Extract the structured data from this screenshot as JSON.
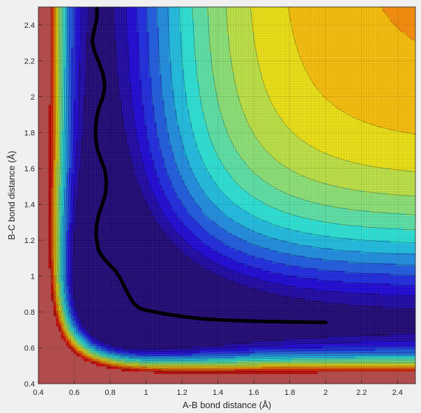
{
  "chart_data": {
    "type": "contour",
    "title": "",
    "xlabel": "A-B bond distance (Å)",
    "ylabel": "B-C bond distance (Å)",
    "xlim": [
      0.4,
      2.5
    ],
    "ylim": [
      0.4,
      2.5
    ],
    "x_ticks": [
      "0.4",
      "0.6",
      "0.8",
      "1",
      "1.2",
      "1.4",
      "1.6",
      "1.8",
      "2",
      "2.2",
      "2.4"
    ],
    "y_ticks": [
      "0.4",
      "0.6",
      "0.8",
      "1",
      "1.2",
      "1.4",
      "1.6",
      "1.8",
      "2",
      "2.2",
      "2.4"
    ],
    "grid": true,
    "colormap": "jet",
    "saturated_color": "#b04c4c",
    "trajectory_color": "#000000",
    "trajectory": [
      [
        0.727,
        2.5
      ],
      [
        0.725,
        2.43
      ],
      [
        0.711,
        2.37
      ],
      [
        0.7,
        2.31
      ],
      [
        0.713,
        2.25
      ],
      [
        0.738,
        2.19
      ],
      [
        0.762,
        2.12
      ],
      [
        0.77,
        2.06
      ],
      [
        0.76,
        2.0
      ],
      [
        0.738,
        1.94
      ],
      [
        0.724,
        1.88
      ],
      [
        0.719,
        1.82
      ],
      [
        0.719,
        1.77
      ],
      [
        0.728,
        1.71
      ],
      [
        0.748,
        1.65
      ],
      [
        0.771,
        1.59
      ],
      [
        0.779,
        1.53
      ],
      [
        0.776,
        1.47
      ],
      [
        0.76,
        1.41
      ],
      [
        0.738,
        1.35
      ],
      [
        0.725,
        1.29
      ],
      [
        0.721,
        1.23
      ],
      [
        0.725,
        1.2
      ],
      [
        0.734,
        1.15
      ],
      [
        0.748,
        1.12
      ],
      [
        0.771,
        1.09
      ],
      [
        0.8,
        1.06
      ],
      [
        0.83,
        1.03
      ],
      [
        0.855,
        0.99
      ],
      [
        0.88,
        0.94
      ],
      [
        0.905,
        0.89
      ],
      [
        0.93,
        0.85
      ],
      [
        0.965,
        0.82
      ],
      [
        1.0,
        0.81
      ],
      [
        1.1,
        0.79
      ],
      [
        1.2,
        0.775
      ],
      [
        1.3,
        0.763
      ],
      [
        1.4,
        0.756
      ],
      [
        1.5,
        0.752
      ],
      [
        1.6,
        0.749
      ],
      [
        1.7,
        0.747
      ],
      [
        1.8,
        0.745
      ],
      [
        1.9,
        0.743
      ],
      [
        2.0,
        0.742
      ]
    ]
  }
}
